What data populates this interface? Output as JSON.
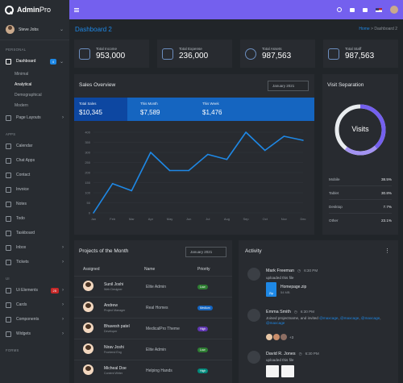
{
  "app": {
    "name_bold": "Admin",
    "name_rest": "Pro"
  },
  "user": {
    "name": "Steve Jobs"
  },
  "sidebar": {
    "sections": {
      "personal": "PERSONAL",
      "apps": "APPS",
      "ui": "UI",
      "forms": "FORMS"
    },
    "dashboard": {
      "label": "Dashboard",
      "badge": "4"
    },
    "dashboard_sub": [
      "Minimal",
      "Analytical",
      "Demographical",
      "Modern"
    ],
    "page_layouts": "Page Layouts",
    "apps": [
      "Calendar",
      "Chat Apps",
      "Contact",
      "Invoice",
      "Notes",
      "Todo",
      "Taskboard",
      "Inbox",
      "Tickets"
    ],
    "ui_items": [
      {
        "label": "Ui Elements",
        "badge": "25"
      },
      {
        "label": "Cards"
      },
      {
        "label": "Components"
      },
      {
        "label": "Widgets"
      }
    ]
  },
  "topbar": {
    "icons": [
      "menu-icon",
      "search-icon",
      "chat-icon",
      "mail-icon",
      "flag-us-icon",
      "avatar"
    ]
  },
  "page": {
    "title": "Dashboard 2",
    "crumb_home": "Home",
    "crumb_sep": ">",
    "crumb_current": "Dashboard 2"
  },
  "stats": [
    {
      "label": "Total Income",
      "value": "953,000",
      "icon": "wallet-icon"
    },
    {
      "label": "Total Expense",
      "value": "236,000",
      "icon": "layers-icon"
    },
    {
      "label": "Total Assets",
      "value": "987,563",
      "icon": "globe-icon"
    },
    {
      "label": "Total Staff",
      "value": "987,563",
      "icon": "bookmark-icon"
    }
  ],
  "sales": {
    "title": "Sales Overview",
    "select": "January 2021",
    "summary": [
      {
        "label": "Total Sales",
        "value": "$10,345"
      },
      {
        "label": "This Month",
        "value": "$7,589"
      },
      {
        "label": "This Week",
        "value": "$1,476"
      }
    ]
  },
  "chart_data": {
    "type": "line",
    "categories": [
      "Jan",
      "Feb",
      "Mar",
      "Apr",
      "May",
      "Jun",
      "Jul",
      "Aug",
      "Sep",
      "Oct",
      "Nov",
      "Dec"
    ],
    "values": [
      0,
      145,
      110,
      300,
      210,
      210,
      290,
      265,
      400,
      310,
      380,
      360
    ],
    "ylim": [
      0,
      400
    ],
    "yticks": [
      0,
      50,
      100,
      150,
      200,
      250,
      300,
      350,
      400
    ],
    "color": "#1e88e5"
  },
  "visit": {
    "title": "Visit Separation",
    "center_label": "Visits",
    "rows": [
      {
        "label": "Mobile",
        "value": "38.5%"
      },
      {
        "label": "Tablet",
        "value": "30.8%"
      },
      {
        "label": "Desktop",
        "value": "7.7%"
      },
      {
        "label": "Other",
        "value": "23.1%"
      }
    ]
  },
  "projects": {
    "title": "Projects of the Month",
    "select": "January 2021",
    "headers": [
      "Assigned",
      "Name",
      "Priority"
    ],
    "rows": [
      {
        "name": "Sunil Joshi",
        "role": "Web Designer",
        "project": "Elite Admin",
        "priority": "Low",
        "color": "#2e7d32"
      },
      {
        "name": "Andrew",
        "role": "Project Manager",
        "project": "Real Homes",
        "priority": "Medium",
        "color": "#1565c0"
      },
      {
        "name": "Bhavesh patel",
        "role": "Developer",
        "project": "MedicalPro Theme",
        "priority": "High",
        "color": "#5e35b1"
      },
      {
        "name": "Nirav Joshi",
        "role": "Frontend Eng",
        "project": "Elite Admin",
        "priority": "Low",
        "color": "#2e7d32"
      },
      {
        "name": "Micheal Doe",
        "role": "Content Writer",
        "project": "Helping Hands",
        "priority": "High",
        "color": "#00897b"
      }
    ]
  },
  "activity": {
    "title": "Activity",
    "items": [
      {
        "name": "Mark Freeman",
        "time": "6:30 PM",
        "text": "uploaded this file",
        "file": "Homepage.zip",
        "size": "54 MB",
        "file_icon": "Zip"
      },
      {
        "name": "Emma Smith",
        "time": "6:30 PM",
        "text1": "Joined projectname, and invited",
        "links": [
          "@maxcage",
          "@maxcage",
          "@maxcage",
          "@maxcage"
        ],
        "more": "+3"
      },
      {
        "name": "David R. Jones",
        "time": "6:30 PM",
        "text": "uploaded this file"
      }
    ]
  }
}
